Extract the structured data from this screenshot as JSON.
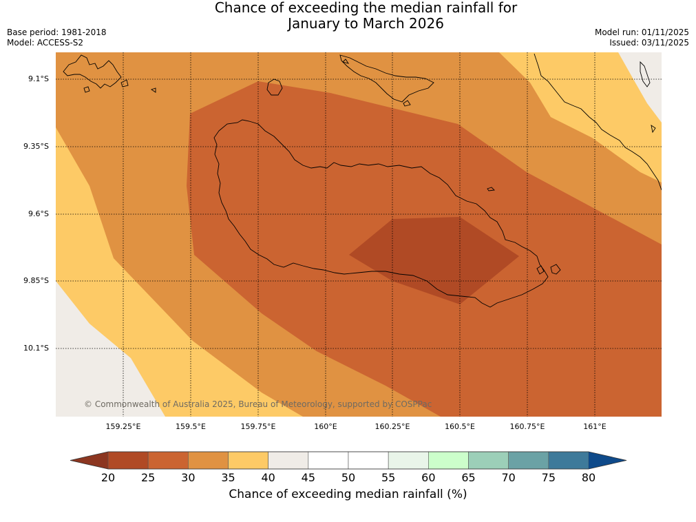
{
  "title_line1": "Chance of exceeding the median rainfall for",
  "title_line2": "January to March 2026",
  "base_period": "Base period: 1981-2018",
  "model": "Model: ACCESS-S2",
  "model_run": "Model run: 01/11/2025",
  "issued": "Issued: 03/11/2025",
  "copyright": "© Commonwealth of Australia 2025, Bureau of Meteorology, supported by COSPPac",
  "map": {
    "lat_labels": [
      "9.1°S",
      "9.35°S",
      "9.6°S",
      "9.85°S",
      "10.1°S"
    ],
    "lon_labels": [
      "159.25°E",
      "159.5°E",
      "159.75°E",
      "160°E",
      "160.25°E",
      "160.5°E",
      "160.75°E",
      "161°E"
    ],
    "colors": {
      "c20_25": "#b04a25",
      "c25_30": "#cb6431",
      "c30_35": "#e09242",
      "c35_40": "#fdca66",
      "c40_45": "#f0ece7",
      "coast": "#000000"
    }
  },
  "colorbar": {
    "ticks": [
      "20",
      "25",
      "30",
      "35",
      "40",
      "45",
      "50",
      "55",
      "60",
      "65",
      "70",
      "75",
      "80"
    ],
    "under_color": "#8c3620",
    "over_color": "#0e4a8a",
    "colors": [
      "#b04a25",
      "#cb6431",
      "#e09242",
      "#fdca66",
      "#f0ece7",
      "#ffffff",
      "#ffffff",
      "#e9f5e9",
      "#ccfecb",
      "#9ccfb8",
      "#6ba2a5",
      "#3e7a9a"
    ],
    "label": "Chance of exceeding median rainfall (%)"
  }
}
